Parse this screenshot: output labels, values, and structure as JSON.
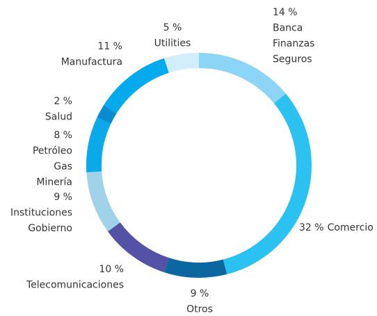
{
  "chart_data": {
    "type": "donut",
    "categories": [
      [
        "Banca",
        "Finanzas",
        "Seguros"
      ],
      [
        "Comercio"
      ],
      [
        "Otros"
      ],
      [
        "Telecomunicaciones"
      ],
      [
        "Instituciones",
        "Gobierno"
      ],
      [
        "Petróleo",
        "Gas",
        "Minería"
      ],
      [
        "Salud"
      ],
      [
        "Manufactura"
      ],
      [
        "Utilities"
      ]
    ],
    "values": [
      14,
      32,
      9,
      10,
      9,
      8,
      2,
      11,
      5
    ],
    "value_labels": [
      "14 %",
      "32 %",
      "9 %",
      "10 %",
      "9 %",
      "8 %",
      "2 %",
      "11 %",
      "5 %"
    ],
    "colors": [
      "#8dd5f6",
      "#2bc1f0",
      "#0b67a0",
      "#5452a6",
      "#a2d2e9",
      "#0aa9e9",
      "#0a8bd2",
      "#03abee",
      "#d2eefa"
    ]
  }
}
